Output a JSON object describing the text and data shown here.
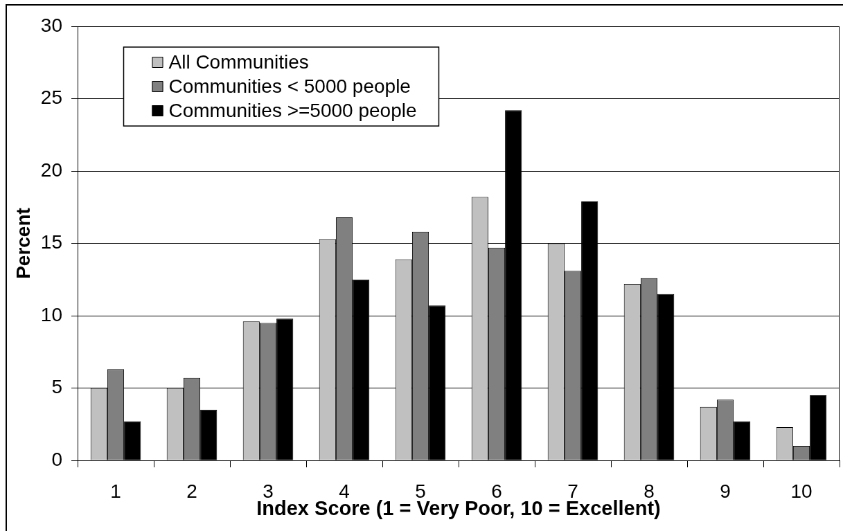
{
  "chart_data": {
    "type": "bar",
    "xlabel": "Index Score (1 = Very Poor, 10 = Excellent)",
    "ylabel": "Percent",
    "categories": [
      "1",
      "2",
      "3",
      "4",
      "5",
      "6",
      "7",
      "8",
      "9",
      "10"
    ],
    "series": [
      {
        "name": "All Communities",
        "color": "#c0c0c0",
        "values": [
          5.0,
          5.0,
          9.6,
          15.3,
          13.9,
          18.2,
          15.0,
          12.2,
          3.7,
          2.3
        ]
      },
      {
        "name": "Communities < 5000 people",
        "color": "#808080",
        "values": [
          6.3,
          5.7,
          9.5,
          16.8,
          15.8,
          14.7,
          13.1,
          12.6,
          4.2,
          1.0
        ]
      },
      {
        "name": "Communities >=5000 people",
        "color": "#000000",
        "values": [
          2.7,
          3.5,
          9.8,
          12.5,
          10.7,
          24.2,
          17.9,
          11.5,
          2.7,
          4.5
        ]
      }
    ],
    "ylim": [
      0,
      30
    ],
    "yticks": [
      0,
      5,
      10,
      15,
      20,
      25,
      30
    ],
    "grid": "y",
    "legend": "top left"
  }
}
